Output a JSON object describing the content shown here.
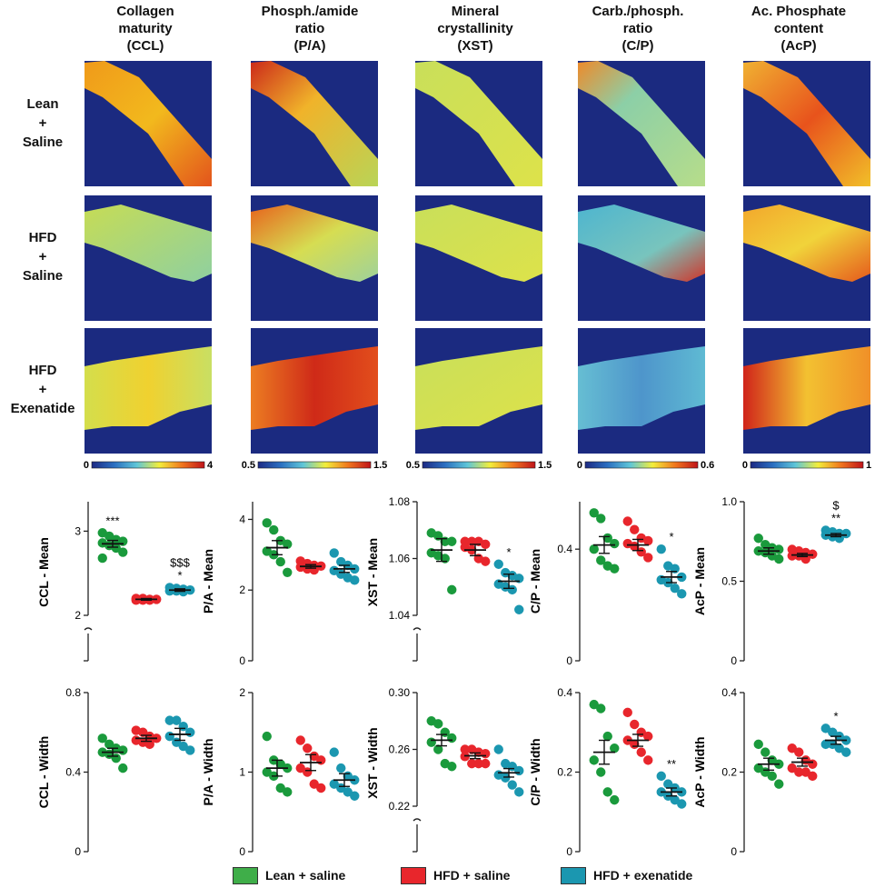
{
  "columns": [
    {
      "line1": "Collagen",
      "line2": "maturity",
      "line3": "(CCL)"
    },
    {
      "line1": "Phosph./amide",
      "line2": "ratio",
      "line3": "(P/A)"
    },
    {
      "line1": "Mineral",
      "line2": "crystallinity",
      "line3": "(XST)"
    },
    {
      "line1": "Carb./phosph.",
      "line2": "ratio",
      "line3": "(C/P)"
    },
    {
      "line1": "Ac. Phosphate",
      "line2": "content",
      "line3": "(AcP)"
    }
  ],
  "rows": [
    {
      "line1": "Lean",
      "line2": "+",
      "line3": "Saline"
    },
    {
      "line1": "HFD",
      "line2": "+",
      "line3": "Saline"
    },
    {
      "line1": "HFD",
      "line2": "+",
      "line3": "Exenatide"
    }
  ],
  "colorbars": [
    {
      "min": "0",
      "max": "4"
    },
    {
      "min": "0.5",
      "max": "1.5"
    },
    {
      "min": "0.5",
      "max": "1.5"
    },
    {
      "min": "0",
      "max": "0.6"
    },
    {
      "min": "0",
      "max": "1"
    }
  ],
  "colors": {
    "lean": "#1a9a3c",
    "hfd": "#e8262c",
    "exenatide": "#1b97b0",
    "map_background": "#1b2a80"
  },
  "legend": [
    {
      "label": "Lean + saline",
      "color": "#3fae49"
    },
    {
      "label": "HFD + saline",
      "color": "#e8262c"
    },
    {
      "label": "HFD + exenatide",
      "color": "#1b97b0"
    }
  ],
  "chart_data": [
    {
      "type": "scatter",
      "ylabel": "CCL - Mean",
      "ylim": [
        2,
        3.35
      ],
      "axis_break": true,
      "ticks": [
        {
          "v": 2,
          "t": "2"
        },
        {
          "v": 3,
          "t": "3"
        }
      ],
      "groups": [
        {
          "name": "Lean + saline",
          "mean": 2.85,
          "sem": 0.04,
          "annot": "***",
          "points": [
            2.98,
            2.94,
            2.9,
            2.88,
            2.86,
            2.83,
            2.8,
            2.75,
            2.68
          ]
        },
        {
          "name": "HFD + saline",
          "mean": 2.19,
          "sem": 0.01,
          "annot": "",
          "points": [
            2.2,
            2.2,
            2.19,
            2.19,
            2.18,
            2.18,
            2.18
          ]
        },
        {
          "name": "HFD + exenatide",
          "mean": 2.3,
          "sem": 0.015,
          "annot": "$$$|*",
          "points": [
            2.33,
            2.32,
            2.31,
            2.3,
            2.29,
            2.29,
            2.28
          ]
        }
      ]
    },
    {
      "type": "scatter",
      "ylabel": "P/A - Mean",
      "ylim": [
        0,
        4.5
      ],
      "axis_break": false,
      "ticks": [
        {
          "v": 0,
          "t": "0"
        },
        {
          "v": 2,
          "t": "2"
        },
        {
          "v": 4,
          "t": "4"
        }
      ],
      "groups": [
        {
          "name": "Lean + saline",
          "mean": 3.2,
          "sem": 0.2,
          "annot": "",
          "points": [
            3.9,
            3.7,
            3.4,
            3.3,
            3.1,
            3.0,
            2.8,
            2.5
          ]
        },
        {
          "name": "HFD + saline",
          "mean": 2.67,
          "sem": 0.05,
          "annot": "",
          "points": [
            2.82,
            2.75,
            2.7,
            2.68,
            2.65,
            2.6,
            2.57
          ]
        },
        {
          "name": "HFD + exenatide",
          "mean": 2.6,
          "sem": 0.1,
          "annot": "",
          "points": [
            3.05,
            2.8,
            2.7,
            2.6,
            2.55,
            2.45,
            2.35,
            2.28
          ]
        }
      ]
    },
    {
      "type": "scatter",
      "ylabel": "XST - Mean",
      "ylim": [
        1.04,
        1.08
      ],
      "axis_break": true,
      "ticks": [
        {
          "v": 1.04,
          "t": "1.04"
        },
        {
          "v": 1.06,
          "t": "1.06"
        },
        {
          "v": 1.08,
          "t": "1.08"
        }
      ],
      "groups": [
        {
          "name": "Lean + saline",
          "mean": 1.063,
          "sem": 0.004,
          "annot": "",
          "points": [
            1.069,
            1.068,
            1.066,
            1.066,
            1.062,
            1.061,
            1.06,
            1.049
          ]
        },
        {
          "name": "HFD + saline",
          "mean": 1.063,
          "sem": 0.002,
          "annot": "",
          "points": [
            1.066,
            1.066,
            1.066,
            1.065,
            1.064,
            1.063,
            1.06,
            1.059
          ]
        },
        {
          "name": "HFD + exenatide",
          "mean": 1.052,
          "sem": 0.0025,
          "annot": "*",
          "points": [
            1.058,
            1.055,
            1.054,
            1.053,
            1.051,
            1.05,
            1.049,
            1.042
          ]
        }
      ]
    },
    {
      "type": "scatter",
      "ylabel": "C/P - Mean",
      "ylim": [
        0,
        0.57
      ],
      "axis_break": false,
      "ticks": [
        {
          "v": 0,
          "t": "0"
        },
        {
          "v": 0.4,
          "t": "0.4"
        }
      ],
      "groups": [
        {
          "name": "Lean + saline",
          "mean": 0.415,
          "sem": 0.03,
          "annot": "",
          "points": [
            0.53,
            0.51,
            0.44,
            0.42,
            0.4,
            0.36,
            0.34,
            0.33
          ]
        },
        {
          "name": "HFD + saline",
          "mean": 0.415,
          "sem": 0.02,
          "annot": "",
          "points": [
            0.5,
            0.47,
            0.44,
            0.43,
            0.42,
            0.41,
            0.39,
            0.37
          ]
        },
        {
          "name": "HFD + exenatide",
          "mean": 0.3,
          "sem": 0.02,
          "annot": "*",
          "points": [
            0.4,
            0.34,
            0.33,
            0.3,
            0.29,
            0.28,
            0.26,
            0.24
          ]
        }
      ]
    },
    {
      "type": "scatter",
      "ylabel": "AcP - Mean",
      "ylim": [
        0,
        1.0
      ],
      "axis_break": false,
      "ticks": [
        {
          "v": 0,
          "t": "0"
        },
        {
          "v": 0.5,
          "t": "0.5"
        },
        {
          "v": 1.0,
          "t": "1.0"
        }
      ],
      "groups": [
        {
          "name": "Lean + saline",
          "mean": 0.69,
          "sem": 0.02,
          "annot": "",
          "points": [
            0.77,
            0.73,
            0.71,
            0.7,
            0.69,
            0.68,
            0.66,
            0.64
          ]
        },
        {
          "name": "HFD + saline",
          "mean": 0.665,
          "sem": 0.01,
          "annot": "",
          "points": [
            0.7,
            0.69,
            0.68,
            0.67,
            0.66,
            0.66,
            0.64
          ]
        },
        {
          "name": "HFD + exenatide",
          "mean": 0.79,
          "sem": 0.01,
          "annot": "$|**",
          "points": [
            0.82,
            0.81,
            0.8,
            0.8,
            0.79,
            0.78,
            0.77
          ]
        }
      ]
    },
    {
      "type": "scatter",
      "ylabel": "CCL - Width",
      "ylim": [
        0,
        0.8
      ],
      "axis_break": false,
      "ticks": [
        {
          "v": 0,
          "t": "0"
        },
        {
          "v": 0.4,
          "t": "0.4"
        },
        {
          "v": 0.8,
          "t": "0.8"
        }
      ],
      "groups": [
        {
          "name": "Lean + saline",
          "mean": 0.5,
          "sem": 0.02,
          "annot": "",
          "points": [
            0.57,
            0.54,
            0.52,
            0.51,
            0.5,
            0.49,
            0.47,
            0.42
          ]
        },
        {
          "name": "HFD + saline",
          "mean": 0.57,
          "sem": 0.015,
          "annot": "",
          "points": [
            0.61,
            0.6,
            0.58,
            0.57,
            0.56,
            0.55,
            0.54
          ]
        },
        {
          "name": "HFD + exenatide",
          "mean": 0.59,
          "sem": 0.03,
          "annot": "",
          "points": [
            0.66,
            0.66,
            0.63,
            0.6,
            0.58,
            0.55,
            0.53,
            0.51
          ]
        }
      ]
    },
    {
      "type": "scatter",
      "ylabel": "P/A - Width",
      "ylim": [
        0,
        2
      ],
      "axis_break": false,
      "ticks": [
        {
          "v": 0,
          "t": "0"
        },
        {
          "v": 1,
          "t": "1"
        },
        {
          "v": 2,
          "t": "2"
        }
      ],
      "groups": [
        {
          "name": "Lean + saline",
          "mean": 1.05,
          "sem": 0.1,
          "annot": "",
          "points": [
            1.45,
            1.15,
            1.1,
            1.05,
            1.0,
            0.95,
            0.8,
            0.75
          ]
        },
        {
          "name": "HFD + saline",
          "mean": 1.12,
          "sem": 0.1,
          "annot": "",
          "points": [
            1.4,
            1.3,
            1.2,
            1.15,
            1.05,
            1.0,
            0.85,
            0.8
          ]
        },
        {
          "name": "HFD + exenatide",
          "mean": 0.9,
          "sem": 0.08,
          "annot": "",
          "points": [
            1.25,
            1.05,
            0.95,
            0.9,
            0.85,
            0.8,
            0.75,
            0.7
          ]
        }
      ]
    },
    {
      "type": "scatter",
      "ylabel": "XST - Width",
      "ylim": [
        0.22,
        0.3
      ],
      "axis_break": true,
      "ticks": [
        {
          "v": 0.22,
          "t": "0.22"
        },
        {
          "v": 0.26,
          "t": "0.26"
        },
        {
          "v": 0.3,
          "t": "0.30"
        }
      ],
      "groups": [
        {
          "name": "Lean + saline",
          "mean": 0.2665,
          "sem": 0.004,
          "annot": "",
          "points": [
            0.28,
            0.278,
            0.272,
            0.268,
            0.265,
            0.26,
            0.25,
            0.248
          ]
        },
        {
          "name": "HFD + saline",
          "mean": 0.2555,
          "sem": 0.002,
          "annot": "",
          "points": [
            0.26,
            0.26,
            0.258,
            0.257,
            0.255,
            0.25,
            0.25,
            0.25
          ]
        },
        {
          "name": "HFD + exenatide",
          "mean": 0.2435,
          "sem": 0.003,
          "annot": "",
          "points": [
            0.26,
            0.25,
            0.248,
            0.245,
            0.242,
            0.24,
            0.235,
            0.23
          ]
        }
      ]
    },
    {
      "type": "scatter",
      "ylabel": "C/P - Width",
      "ylim": [
        0,
        0.4
      ],
      "axis_break": false,
      "ticks": [
        {
          "v": 0,
          "t": "0"
        },
        {
          "v": 0.2,
          "t": "0.2"
        },
        {
          "v": 0.4,
          "t": "0.4"
        }
      ],
      "groups": [
        {
          "name": "Lean + saline",
          "mean": 0.25,
          "sem": 0.03,
          "annot": "",
          "points": [
            0.37,
            0.36,
            0.29,
            0.26,
            0.23,
            0.2,
            0.15,
            0.13
          ]
        },
        {
          "name": "HFD + saline",
          "mean": 0.28,
          "sem": 0.015,
          "annot": "",
          "points": [
            0.35,
            0.32,
            0.3,
            0.29,
            0.28,
            0.27,
            0.25,
            0.23
          ]
        },
        {
          "name": "HFD + exenatide",
          "mean": 0.15,
          "sem": 0.01,
          "annot": "**",
          "points": [
            0.19,
            0.17,
            0.16,
            0.15,
            0.15,
            0.14,
            0.13,
            0.12
          ]
        }
      ]
    },
    {
      "type": "scatter",
      "ylabel": "AcP - Width",
      "ylim": [
        0,
        0.4
      ],
      "axis_break": false,
      "ticks": [
        {
          "v": 0,
          "t": "0"
        },
        {
          "v": 0.2,
          "t": "0.2"
        },
        {
          "v": 0.4,
          "t": "0.4"
        }
      ],
      "groups": [
        {
          "name": "Lean + saline",
          "mean": 0.22,
          "sem": 0.015,
          "annot": "",
          "points": [
            0.27,
            0.25,
            0.23,
            0.22,
            0.21,
            0.2,
            0.19,
            0.17
          ]
        },
        {
          "name": "HFD + saline",
          "mean": 0.225,
          "sem": 0.01,
          "annot": "",
          "points": [
            0.26,
            0.25,
            0.23,
            0.22,
            0.21,
            0.2,
            0.2,
            0.19
          ]
        },
        {
          "name": "HFD + exenatide",
          "mean": 0.28,
          "sem": 0.01,
          "annot": "*",
          "points": [
            0.31,
            0.3,
            0.29,
            0.28,
            0.27,
            0.27,
            0.26,
            0.25
          ]
        }
      ]
    }
  ]
}
